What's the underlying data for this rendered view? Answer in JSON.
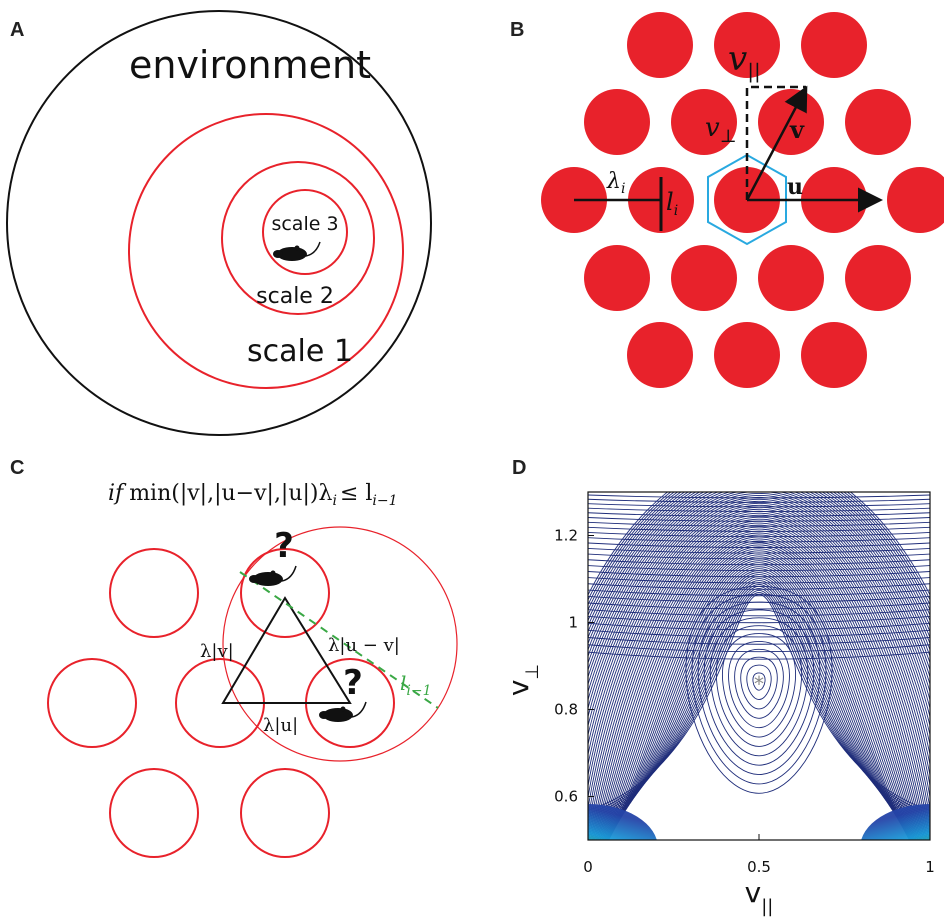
{
  "panels": {
    "a": {
      "label": "A",
      "outer_text": "environment",
      "scale1": "scale 1",
      "scale2": "scale 2",
      "scale3": "scale 3"
    },
    "b": {
      "label": "B",
      "v_par": "v",
      "v_par_sub": "||",
      "v_perp": "v",
      "v_perp_sub": "⊥",
      "vec_v": "v",
      "vec_u": "u",
      "lambda": "λ",
      "lambda_sub": "i",
      "l": "l",
      "l_sub": "i"
    },
    "c": {
      "label": "C",
      "condition_if": "if",
      "condition_rest": "min(|v|,|u−v|,|u|)λ",
      "condition_sub_i": "i",
      "condition_le": "≤ l",
      "condition_sub": "i−1",
      "q1": "?",
      "q2": "?",
      "side_v": "λ|v|",
      "side_uv": "λ|u − v|",
      "side_u": "λ|u|",
      "side_sub": "i",
      "l_label": "l",
      "l_sub": "i−1"
    },
    "d": {
      "label": "D",
      "xlabel": "v",
      "xlabel_sub": "||",
      "ylabel": "v",
      "ylabel_sub": "⊥",
      "xticks": [
        "0",
        "0.5",
        "1"
      ],
      "yticks": [
        "0.6",
        "0.8",
        "1",
        "1.2"
      ]
    }
  },
  "colors": {
    "red": "#e8222b",
    "cyan": "#29a9e0",
    "green": "#3aa845",
    "navy": "#1f2d7a"
  },
  "chart_data": {
    "type": "contour",
    "x": {
      "ticks": [
        0,
        0.5,
        1
      ],
      "range": [
        0,
        1
      ]
    },
    "y": {
      "ticks": [
        0.6,
        0.8,
        1,
        1.2
      ],
      "range": [
        0.5,
        1.3
      ]
    },
    "marker": {
      "x": 0.5,
      "y": 0.866,
      "symbol": "*"
    }
  }
}
